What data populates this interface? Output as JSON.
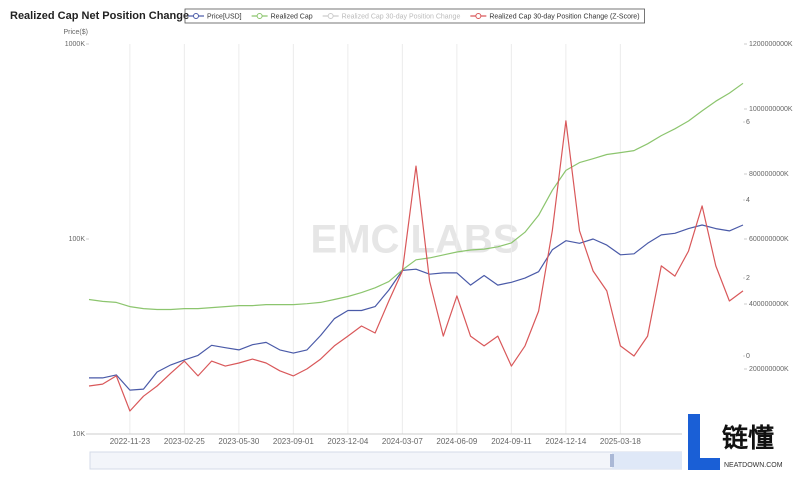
{
  "chart_data": {
    "type": "line",
    "title": "Realized Cap Net Position Change",
    "y_label": "Price($)",
    "watermark": "EMC LABS",
    "logo": {
      "text": "链懂",
      "sub": "NEATDOWN.COM"
    },
    "categories": [
      null,
      null,
      null,
      "2022-11-23",
      null,
      null,
      null,
      "2023-02-25",
      null,
      null,
      null,
      "2023-05-30",
      null,
      null,
      null,
      "2023-09-01",
      null,
      null,
      null,
      "2023-12-04",
      null,
      null,
      null,
      "2024-03-07",
      null,
      null,
      null,
      "2024-06-09",
      null,
      null,
      null,
      "2024-09-11",
      null,
      null,
      null,
      "2024-12-14",
      null,
      null,
      null,
      "2025-03-18",
      null,
      null,
      null,
      null,
      null,
      null,
      null,
      null,
      null
    ],
    "ylog": true,
    "ylim": [
      10000,
      1000000
    ],
    "yticks": [
      {
        "value": 10000,
        "label": "10K"
      },
      {
        "value": 100000,
        "label": "100K"
      },
      {
        "value": 1000000,
        "label": "1000K"
      }
    ],
    "y2lim": [
      0,
      1200000000000
    ],
    "y2ticks": [
      {
        "value": 200000000000,
        "label": "200000000K"
      },
      {
        "value": 400000000000,
        "label": "400000000K"
      },
      {
        "value": 600000000000,
        "label": "600000000K"
      },
      {
        "value": 800000000000,
        "label": "800000000K"
      },
      {
        "value": 1000000000000,
        "label": "1000000000K"
      },
      {
        "value": 1200000000000,
        "label": "1200000000K"
      }
    ],
    "y3lim": [
      -2,
      8
    ],
    "y3ticks": [
      0,
      2,
      4,
      6
    ],
    "grid": true,
    "series": [
      {
        "name": "Price[USD]",
        "color": "#4a5aa8",
        "axis": "y",
        "values": [
          19400,
          19400,
          20100,
          16800,
          17000,
          20800,
          22600,
          24000,
          25300,
          28500,
          27700,
          27000,
          28700,
          29500,
          27000,
          26000,
          27000,
          32000,
          39000,
          43000,
          43000,
          45000,
          54700,
          69000,
          70000,
          66000,
          67000,
          67000,
          58000,
          65000,
          58000,
          60000,
          63000,
          68000,
          88000,
          98000,
          95000,
          100000,
          93000,
          83000,
          84000,
          95000,
          105000,
          107000,
          113000,
          118000,
          113000,
          110000,
          118000
        ]
      },
      {
        "name": "Realized Cap",
        "color": "#8cc56e",
        "axis": "y2",
        "values": [
          414000000000,
          408000000000,
          405000000000,
          392000000000,
          386000000000,
          383000000000,
          383000000000,
          386000000000,
          386000000000,
          389000000000,
          392000000000,
          395000000000,
          395000000000,
          398000000000,
          398000000000,
          398000000000,
          401000000000,
          405000000000,
          414000000000,
          423000000000,
          435000000000,
          450000000000,
          469000000000,
          505000000000,
          536000000000,
          542000000000,
          551000000000,
          560000000000,
          566000000000,
          569000000000,
          576000000000,
          588000000000,
          621000000000,
          673000000000,
          750000000000,
          811000000000,
          835000000000,
          847000000000,
          860000000000,
          866000000000,
          872000000000,
          893000000000,
          918000000000,
          939000000000,
          963000000000,
          994000000000,
          1024000000000,
          1049000000000,
          1079000000000
        ]
      },
      {
        "name": "Realized Cap 30-day Position Change",
        "color": "#cccccc",
        "hidden": true
      },
      {
        "name": "Realized Cap 30-day Position Change (Z-Score)",
        "color": "#d9585a",
        "axis": "y3",
        "values": [
          -0.77,
          -0.72,
          -0.51,
          -1.41,
          -1.03,
          -0.77,
          -0.44,
          -0.13,
          -0.51,
          -0.13,
          -0.26,
          -0.18,
          -0.08,
          -0.18,
          -0.38,
          -0.51,
          -0.33,
          -0.08,
          0.26,
          0.51,
          0.77,
          0.59,
          1.41,
          2.18,
          4.87,
          1.92,
          0.51,
          1.54,
          0.51,
          0.26,
          0.51,
          -0.26,
          0.26,
          1.15,
          3.21,
          6.03,
          3.21,
          2.18,
          1.67,
          0.26,
          0,
          0.51,
          2.31,
          2.05,
          2.69,
          3.85,
          2.31,
          1.41,
          1.67
        ]
      }
    ]
  }
}
